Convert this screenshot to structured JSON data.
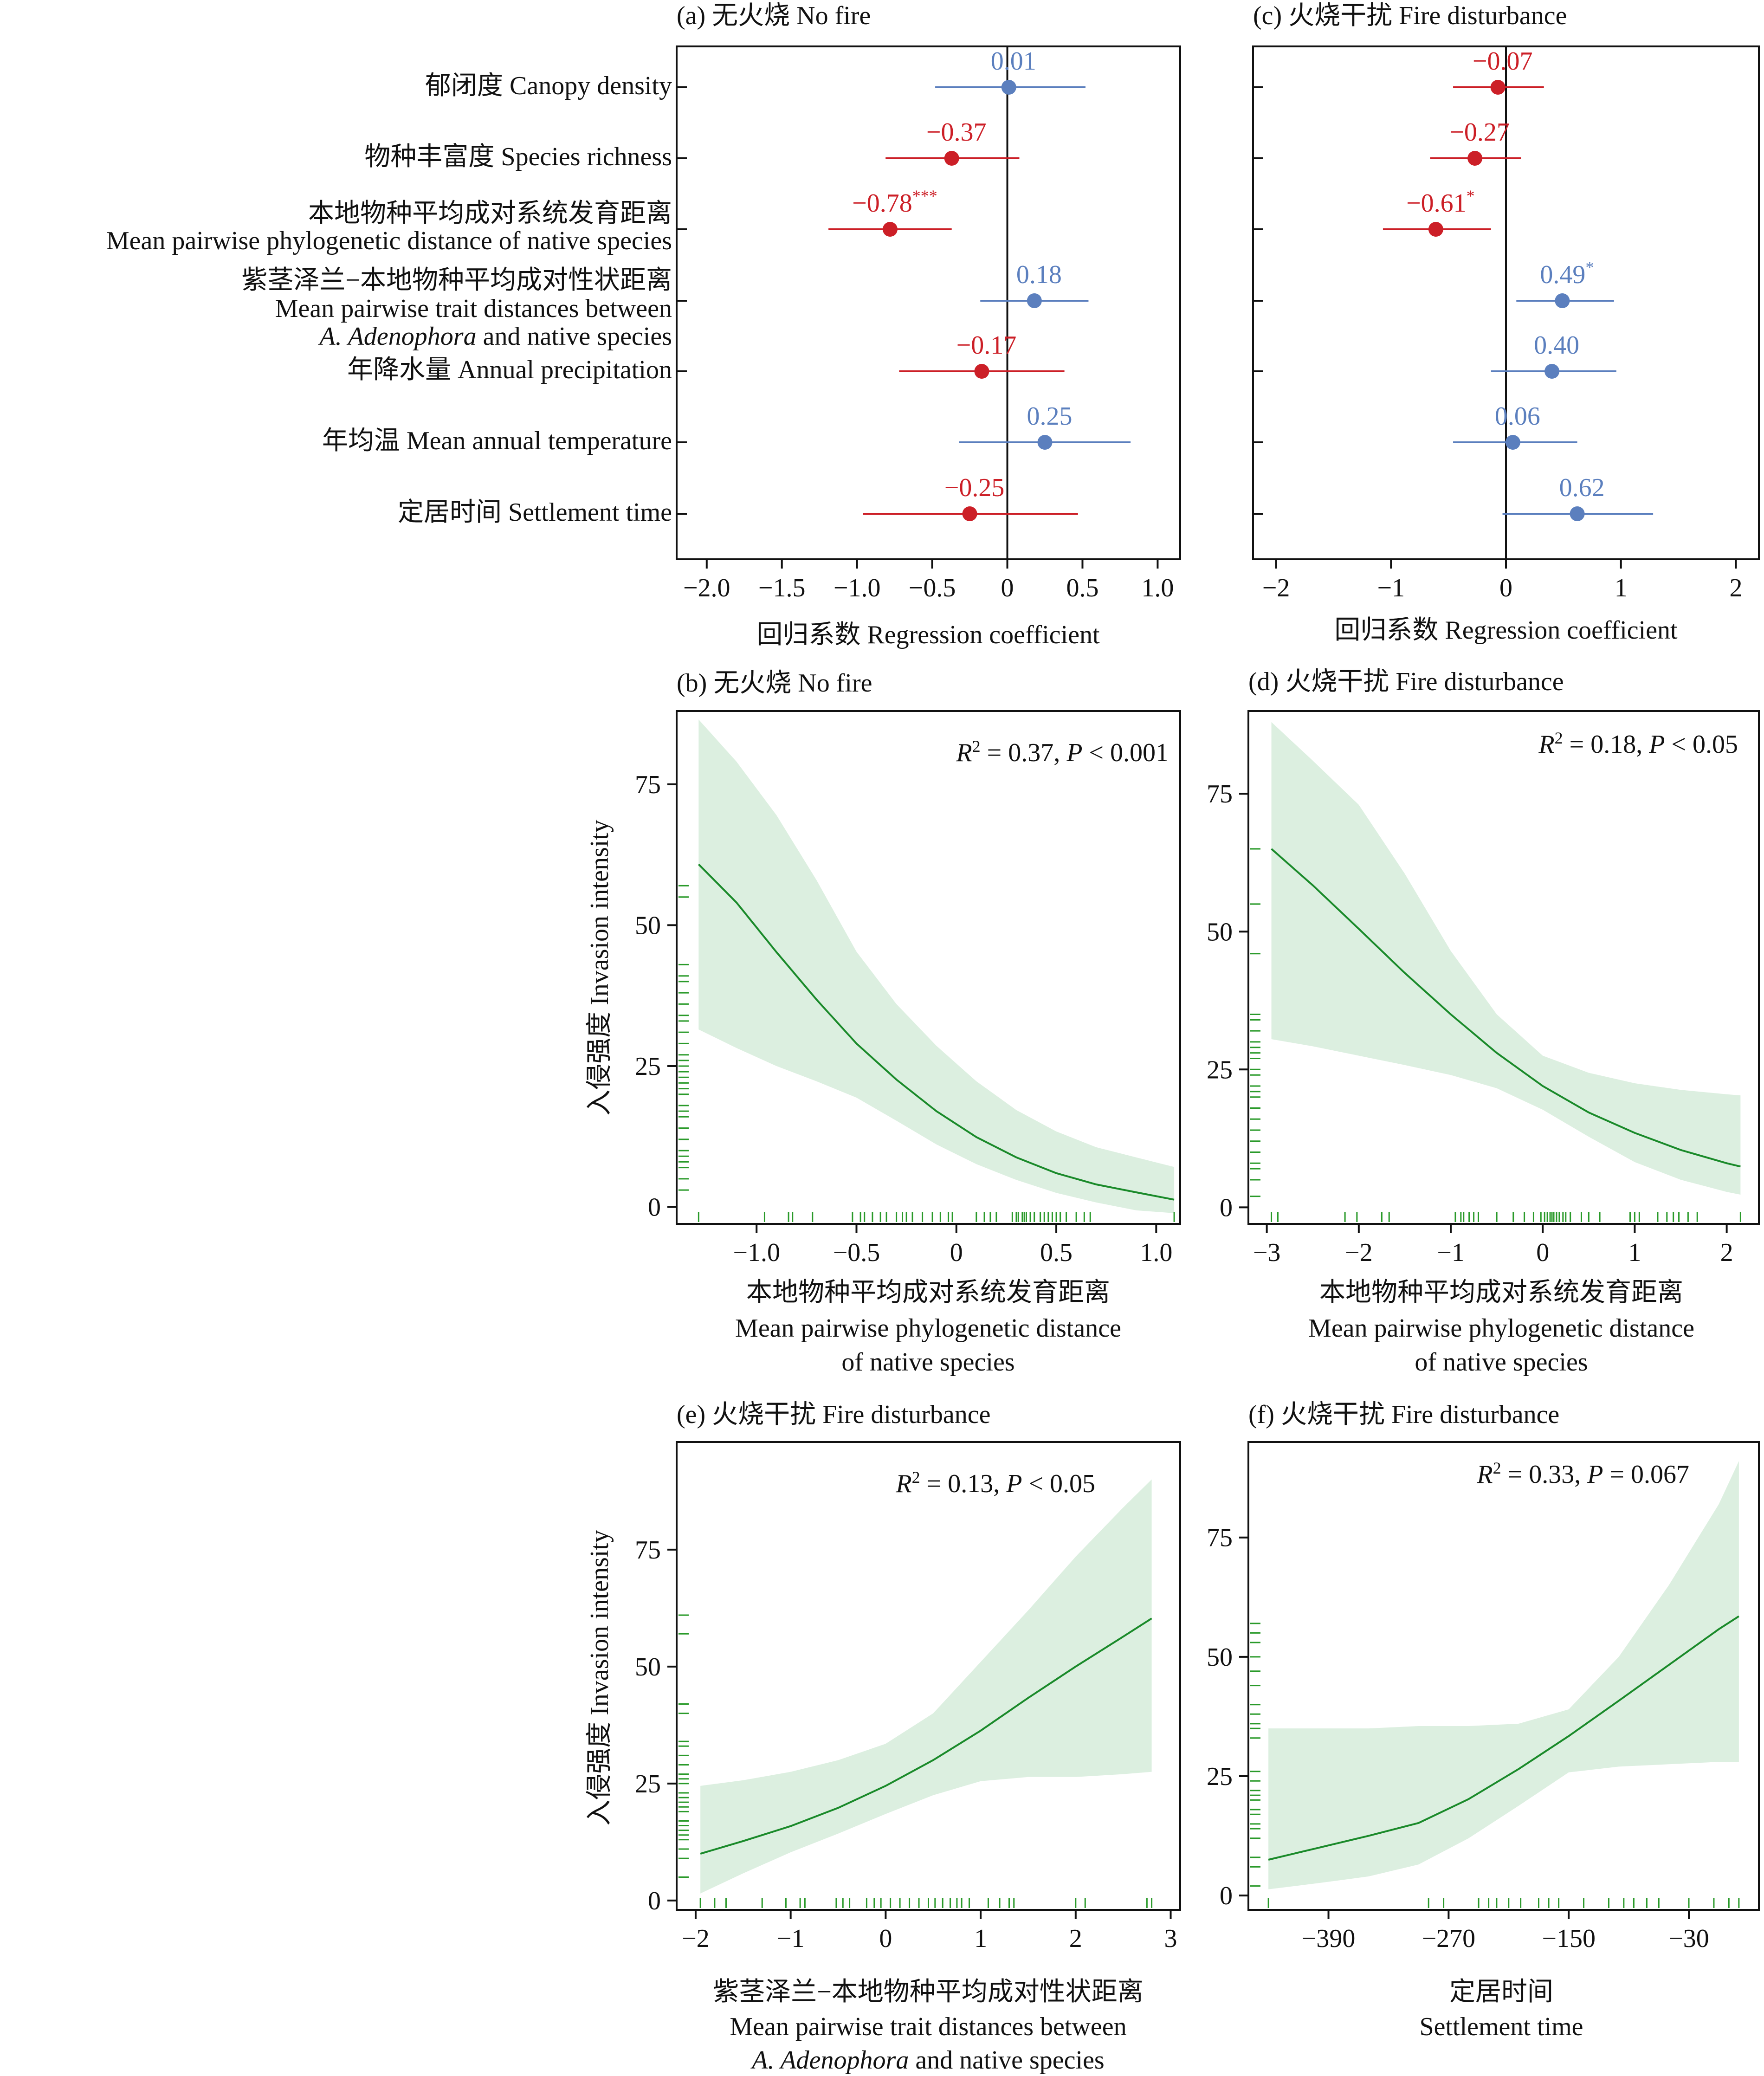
{
  "colors": {
    "negative": "#cc1f27",
    "positive": "#5b7fbe",
    "line": "#1a8a2a",
    "band": "#dcefe0",
    "rug": "#2a9a2a",
    "axis": "#111111"
  },
  "rows": [
    {
      "zh": "郁闭度 Canopy density",
      "en": [],
      "en_italic_prefix": "",
      "en_last": ""
    },
    {
      "zh": "物种丰富度 Species richness",
      "en": [],
      "en_italic_prefix": "",
      "en_last": ""
    },
    {
      "zh": "本地物种平均成对系统发育距离",
      "en": [
        "Mean pairwise phylogenetic distance of native species"
      ],
      "en_italic_prefix": "",
      "en_last": ""
    },
    {
      "zh": "紫茎泽兰−本地物种平均成对性状距离",
      "en": [
        "Mean pairwise trait distances between"
      ],
      "en_italic_prefix": "A. Adenophora",
      "en_last": " and native species"
    },
    {
      "zh": "年降水量 Annual precipitation",
      "en": [],
      "en_italic_prefix": "",
      "en_last": ""
    },
    {
      "zh": "年均温 Mean annual temperature",
      "en": [],
      "en_italic_prefix": "",
      "en_last": ""
    },
    {
      "zh": "定居时间 Settlement time",
      "en": [],
      "en_italic_prefix": "",
      "en_last": ""
    }
  ],
  "chart_data": [
    {
      "id": "a",
      "type": "forest",
      "title": "(a) 无火烧 No fire",
      "xlabel": "回归系数 Regression coefficient",
      "xlim": [
        -2.2,
        1.15
      ],
      "xticks": [
        -2.0,
        -1.5,
        -1.0,
        -0.5,
        0,
        0.5,
        1.0
      ],
      "tick_labels": [
        "−2.0",
        "−1.5",
        "−1.0",
        "−0.5",
        "0",
        "0.5",
        "1.0"
      ],
      "estimates": [
        0.01,
        -0.37,
        -0.78,
        0.18,
        -0.17,
        0.25,
        -0.25
      ],
      "lower": [
        -0.48,
        -0.81,
        -1.19,
        -0.18,
        -0.72,
        -0.32,
        -0.96
      ],
      "upper": [
        0.52,
        0.08,
        -0.37,
        0.54,
        0.38,
        0.82,
        0.47
      ],
      "labels": [
        "0.01",
        "−0.37",
        "−0.78",
        "0.18",
        "−0.17",
        "0.25",
        "−0.25"
      ],
      "sig": [
        "",
        "",
        "***",
        "",
        "",
        "",
        ""
      ]
    },
    {
      "id": "c",
      "type": "forest",
      "title": "(c) 火烧干扰 Fire disturbance",
      "xlabel": "回归系数 Regression coefficient",
      "xlim": [
        -2.2,
        2.2
      ],
      "xticks": [
        -2,
        -1,
        0,
        1,
        2
      ],
      "tick_labels": [
        "−2",
        "−1",
        "0",
        "1",
        "2"
      ],
      "estimates": [
        -0.07,
        -0.27,
        -0.61,
        0.49,
        0.4,
        0.06,
        0.62
      ],
      "lower": [
        -0.46,
        -0.66,
        -1.07,
        0.09,
        -0.13,
        -0.46,
        -0.03
      ],
      "upper": [
        0.33,
        0.13,
        -0.13,
        0.94,
        0.96,
        0.62,
        1.28
      ],
      "labels": [
        "−0.07",
        "−0.27",
        "−0.61",
        "0.49",
        "0.40",
        "0.06",
        "0.62"
      ],
      "sig": [
        "",
        "",
        "*",
        "*",
        "",
        "",
        ""
      ]
    },
    {
      "id": "b",
      "type": "line",
      "title": "(b) 无火烧 No fire",
      "ylabel": "入侵强度 Invasion intensity",
      "xlabel": [
        "本地物种平均成对系统发育距离",
        "Mean pairwise phylogenetic distance",
        "of native species"
      ],
      "xlabel_italic_prefix": "",
      "xlabel_last": "",
      "r2": "0.37",
      "p_op": "<",
      "p": "0.001",
      "xlim": [
        -1.4,
        1.12
      ],
      "ylim": [
        -3,
        88
      ],
      "xticks": [
        -1.0,
        -0.5,
        0,
        0.5,
        1.0
      ],
      "xtick_labels": [
        "−1.0",
        "−0.5",
        "0",
        "0.5",
        "1.0"
      ],
      "yticks": [
        0,
        25,
        50,
        75
      ],
      "x": [
        -1.29,
        -1.1,
        -0.9,
        -0.7,
        -0.5,
        -0.3,
        -0.1,
        0.1,
        0.3,
        0.5,
        0.7,
        0.9,
        1.09
      ],
      "y": [
        60.8,
        54.0,
        45.2,
        36.8,
        29.0,
        22.6,
        17.0,
        12.4,
        8.8,
        6.0,
        4.0,
        2.6,
        1.3
      ],
      "lower": [
        31.5,
        28.2,
        25.0,
        22.3,
        19.4,
        15.3,
        11.1,
        7.6,
        4.8,
        2.5,
        0.8,
        -0.6,
        -1.1
      ],
      "upper": [
        86.5,
        79.0,
        69.5,
        58.0,
        45.3,
        36.0,
        28.6,
        22.3,
        17.2,
        13.4,
        10.6,
        8.8,
        7.1
      ],
      "rug_x": [
        -1.29,
        -0.96,
        -0.84,
        -0.82,
        -0.72,
        -0.52,
        -0.48,
        -0.46,
        -0.42,
        -0.38,
        -0.35,
        -0.3,
        -0.27,
        -0.25,
        -0.22,
        -0.17,
        -0.12,
        -0.08,
        -0.04,
        -0.02,
        0.1,
        0.14,
        0.17,
        0.2,
        0.28,
        0.3,
        0.31,
        0.33,
        0.34,
        0.35,
        0.37,
        0.39,
        0.42,
        0.44,
        0.46,
        0.48,
        0.5,
        0.52,
        0.55,
        0.6,
        0.64,
        0.67,
        1.09
      ],
      "rug_y": [
        3,
        5,
        7,
        8,
        9,
        10,
        12,
        14,
        16,
        17,
        18,
        20,
        21,
        22,
        23,
        24,
        25,
        26,
        27,
        29,
        31,
        33,
        34,
        36,
        38,
        40,
        41,
        43,
        55,
        57
      ]
    },
    {
      "id": "d",
      "type": "line",
      "title": "(d) 火烧干扰 Fire disturbance",
      "ylabel": "",
      "xlabel": [
        "本地物种平均成对系统发育距离",
        "Mean pairwise phylogenetic distance",
        "of native species"
      ],
      "xlabel_italic_prefix": "",
      "xlabel_last": "",
      "r2": "0.18",
      "p_op": "<",
      "p": "0.05",
      "xlim": [
        -3.2,
        2.35
      ],
      "ylim": [
        -3,
        90
      ],
      "xticks": [
        -3,
        -2,
        -1,
        0,
        1,
        2
      ],
      "xtick_labels": [
        "−3",
        "−2",
        "−1",
        "0",
        "1",
        "2"
      ],
      "yticks": [
        0,
        25,
        50,
        75
      ],
      "x": [
        -2.95,
        -2.5,
        -2.0,
        -1.5,
        -1.0,
        -0.5,
        0,
        0.5,
        1.0,
        1.5,
        2.0,
        2.15
      ],
      "y": [
        65.0,
        58.4,
        50.5,
        42.5,
        35.0,
        28.0,
        22.0,
        17.2,
        13.5,
        10.4,
        8.0,
        7.4
      ],
      "lower": [
        30.5,
        29.2,
        27.5,
        25.8,
        24.0,
        21.6,
        17.7,
        12.8,
        8.2,
        5.0,
        2.8,
        2.3
      ],
      "upper": [
        88.0,
        81.0,
        73.0,
        60.5,
        46.5,
        35.0,
        27.5,
        24.4,
        22.5,
        21.3,
        20.5,
        20.3
      ],
      "rug_x": [
        -2.95,
        -2.88,
        -2.15,
        -2.02,
        -1.75,
        -1.67,
        -0.95,
        -0.89,
        -0.86,
        -0.8,
        -0.75,
        -0.7,
        -0.5,
        -0.32,
        -0.2,
        -0.1,
        -0.02,
        0.02,
        0.05,
        0.08,
        0.1,
        0.12,
        0.15,
        0.18,
        0.22,
        0.25,
        0.3,
        0.42,
        0.5,
        0.62,
        0.95,
        1.0,
        1.05,
        1.25,
        1.35,
        1.42,
        1.48,
        1.58,
        1.68,
        2.15
      ],
      "rug_y": [
        2,
        5,
        7,
        8,
        10,
        12,
        14,
        16,
        18,
        20,
        21,
        22,
        24,
        25,
        27,
        28,
        29,
        30,
        32,
        34,
        35,
        46,
        55,
        65
      ]
    },
    {
      "id": "e",
      "type": "line",
      "title": "(e) 火烧干扰 Fire disturbance",
      "ylabel": "入侵强度 Invasion intensity",
      "xlabel": [
        "紫茎泽兰−本地物种平均成对性状距离",
        "Mean pairwise trait distances between"
      ],
      "xlabel_italic_prefix": "A. Adenophora",
      "xlabel_last": " and native species",
      "r2": "0.13",
      "p_op": "<",
      "p": "0.05",
      "xlim": [
        -2.2,
        3.1
      ],
      "ylim": [
        -2,
        98
      ],
      "xticks": [
        -2,
        -1,
        0,
        1,
        2,
        3
      ],
      "xtick_labels": [
        "−2",
        "−1",
        "0",
        "1",
        "2",
        "3"
      ],
      "yticks": [
        0,
        25,
        50,
        75
      ],
      "x": [
        -1.95,
        -1.5,
        -1.0,
        -0.5,
        0,
        0.5,
        1.0,
        1.5,
        2.0,
        2.5,
        2.8
      ],
      "y": [
        10.0,
        12.7,
        15.9,
        19.8,
        24.5,
        30.0,
        36.3,
        43.3,
        50.0,
        56.4,
        60.3
      ],
      "lower": [
        1.5,
        5.8,
        10.3,
        14.3,
        18.5,
        22.5,
        25.5,
        26.4,
        26.4,
        27.0,
        27.5
      ],
      "upper": [
        24.5,
        25.7,
        27.5,
        30.0,
        33.5,
        40.0,
        51.0,
        62.0,
        73.5,
        84.0,
        90.0
      ],
      "rug_x": [
        -1.95,
        -1.8,
        -1.68,
        -1.3,
        -1.05,
        -0.9,
        -0.85,
        -0.52,
        -0.45,
        -0.38,
        -0.2,
        -0.12,
        -0.05,
        0.05,
        0.15,
        0.25,
        0.35,
        0.45,
        0.52,
        0.6,
        0.68,
        0.75,
        0.8,
        0.88,
        1.08,
        1.2,
        1.3,
        1.35,
        2.0,
        2.1,
        2.75,
        2.8
      ],
      "rug_y": [
        5,
        9,
        11,
        13,
        14,
        15,
        16,
        17,
        19,
        20,
        21,
        22,
        23,
        25,
        26,
        27,
        29,
        31,
        33,
        34,
        40,
        42,
        57,
        61
      ]
    },
    {
      "id": "f",
      "type": "line",
      "title": "(f) 火烧干扰 Fire disturbance",
      "ylabel": "",
      "xlabel": [
        "定居时间",
        "Settlement time"
      ],
      "xlabel_italic_prefix": "",
      "xlabel_last": "",
      "r2": "0.33",
      "p_op": "=",
      "p": "0.067",
      "xlim": [
        -470,
        40
      ],
      "ylim": [
        -3,
        95
      ],
      "xticks": [
        -390,
        -270,
        -150,
        -30
      ],
      "xtick_labels": [
        "−390",
        "−270",
        "−150",
        "−30"
      ],
      "yticks": [
        0,
        25,
        50,
        75
      ],
      "x": [
        -450,
        -400,
        -350,
        -300,
        -250,
        -200,
        -150,
        -100,
        -50,
        0,
        20
      ],
      "y": [
        7.5,
        10.0,
        12.5,
        15.2,
        20.2,
        26.5,
        33.4,
        40.8,
        48.3,
        55.8,
        58.5
      ],
      "lower": [
        1.3,
        2.6,
        4.0,
        6.5,
        12.0,
        18.8,
        25.8,
        27.0,
        27.5,
        28.0,
        28.0
      ],
      "upper": [
        35.0,
        35.0,
        35.0,
        35.5,
        35.5,
        36.0,
        39.0,
        50.0,
        65.0,
        82.0,
        91.0
      ],
      "rug_x": [
        -450,
        -290,
        -275,
        -240,
        -230,
        -222,
        -210,
        -198,
        -180,
        -170,
        -160,
        -135,
        -110,
        -95,
        -85,
        -72,
        -60,
        -30,
        -5,
        10,
        20
      ],
      "rug_y": [
        2,
        6,
        8,
        12,
        14,
        15,
        17,
        18,
        20,
        21,
        22,
        24,
        26,
        33,
        35,
        36,
        38,
        40,
        44,
        47,
        50,
        53,
        55,
        57
      ]
    }
  ]
}
